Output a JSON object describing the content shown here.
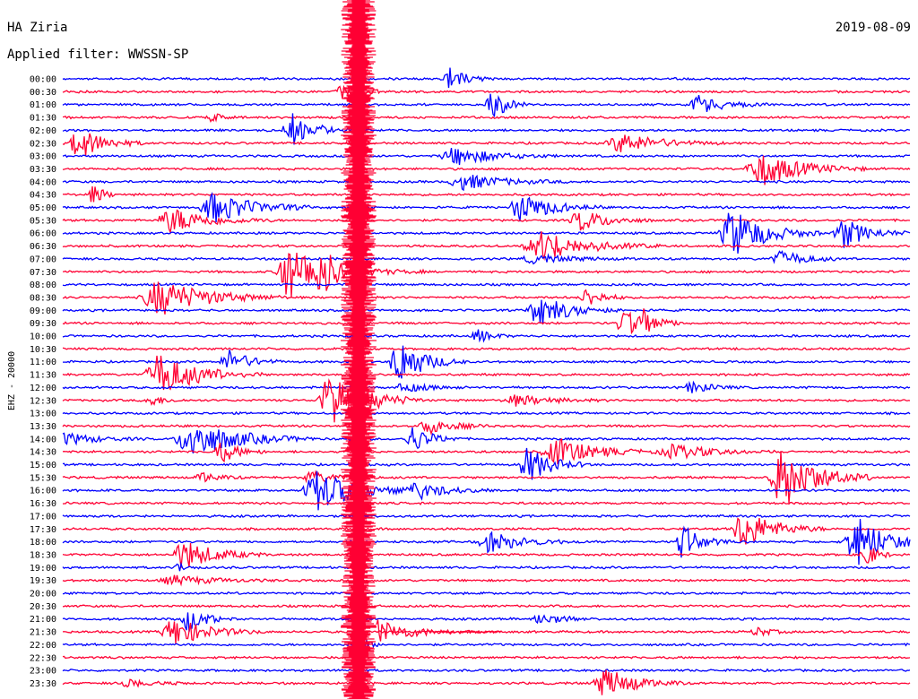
{
  "header": {
    "station": "HA Ziria",
    "date": "2019-08-09",
    "filter": "Applied filter: WWSSN-SP"
  },
  "chart_data": {
    "type": "line",
    "title": "HA Ziria",
    "subtitle": "Applied filter: WWSSN-SP",
    "ylabel": "EHZ - 20000",
    "trace_colors": [
      "#0000ff",
      "#ff0033"
    ],
    "rows": [
      "00:00",
      "00:30",
      "01:00",
      "01:30",
      "02:00",
      "02:30",
      "03:00",
      "03:30",
      "04:00",
      "04:30",
      "05:00",
      "05:30",
      "06:00",
      "06:30",
      "07:00",
      "07:30",
      "08:00",
      "08:30",
      "09:00",
      "09:30",
      "10:00",
      "10:30",
      "11:00",
      "11:30",
      "12:00",
      "12:30",
      "13:00",
      "13:30",
      "14:00",
      "14:30",
      "15:00",
      "15:30",
      "16:00",
      "16:30",
      "17:00",
      "17:30",
      "18:00",
      "18:30",
      "19:00",
      "19:30",
      "20:00",
      "20:30",
      "21:00",
      "21:30",
      "22:00",
      "22:30",
      "23:00",
      "23:30"
    ],
    "grid": false
  }
}
